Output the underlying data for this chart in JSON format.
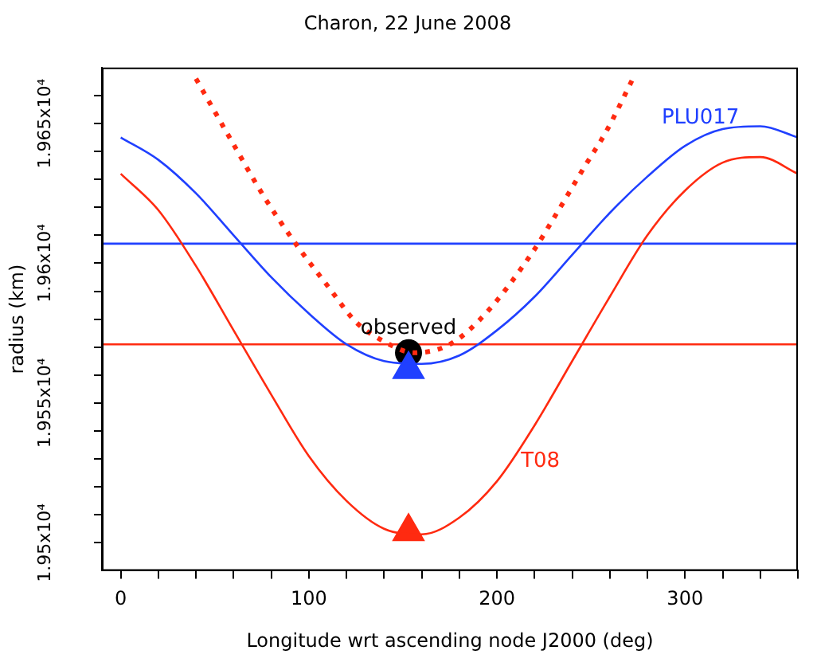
{
  "chart_data": {
    "type": "line",
    "title": "Charon, 22 June 2008",
    "xlabel": "Longitude wrt ascending node J2000 (deg)",
    "ylabel": "radius (km)",
    "xlim": [
      -10,
      360
    ],
    "ylim": [
      19490,
      19670
    ],
    "xticks": [
      0,
      {
        "value": 20,
        "label": null
      },
      {
        "value": 40,
        "label": null
      },
      {
        "value": 60,
        "label": null
      },
      {
        "value": 80,
        "label": null
      },
      100,
      {
        "value": 120,
        "label": null
      },
      {
        "value": 140,
        "label": null
      },
      {
        "value": 160,
        "label": null
      },
      {
        "value": 180,
        "label": null
      },
      200,
      {
        "value": 220,
        "label": null
      },
      {
        "value": 240,
        "label": null
      },
      {
        "value": 260,
        "label": null
      },
      {
        "value": 280,
        "label": null
      },
      300,
      {
        "value": 320,
        "label": null
      },
      {
        "value": 340,
        "label": null
      },
      {
        "value": 360,
        "label": null
      }
    ],
    "yticks": [
      {
        "value": 19500,
        "label": "1.95x10⁴"
      },
      {
        "value": 19510,
        "label": null
      },
      {
        "value": 19520,
        "label": null
      },
      {
        "value": 19530,
        "label": null
      },
      {
        "value": 19540,
        "label": null
      },
      {
        "value": 19550,
        "label": "1.955x10⁴"
      },
      {
        "value": 19560,
        "label": null
      },
      {
        "value": 19570,
        "label": null
      },
      {
        "value": 19580,
        "label": null
      },
      {
        "value": 19590,
        "label": null
      },
      {
        "value": 19600,
        "label": "1.96x10⁴"
      },
      {
        "value": 19610,
        "label": null
      },
      {
        "value": 19620,
        "label": null
      },
      {
        "value": 19630,
        "label": null
      },
      {
        "value": 19640,
        "label": null
      },
      {
        "value": 19650,
        "label": "1.965x10⁴"
      },
      {
        "value": 19660,
        "label": null
      }
    ],
    "grid": false,
    "legend": false,
    "series": [
      {
        "name": "PLU017",
        "color": "#2040ff",
        "x": [
          0,
          20,
          40,
          60,
          80,
          100,
          120,
          140,
          160,
          180,
          200,
          220,
          240,
          260,
          280,
          300,
          320,
          340,
          360
        ],
        "values": [
          19645,
          19637,
          19625,
          19610,
          19595,
          19582,
          19571,
          19565,
          19564,
          19567,
          19576,
          19588,
          19603,
          19618,
          19631,
          19642,
          19648,
          19649,
          19645
        ]
      },
      {
        "name": "T08",
        "color": "#ff2a10",
        "x": [
          0,
          20,
          40,
          60,
          80,
          100,
          120,
          140,
          160,
          180,
          200,
          220,
          240,
          260,
          280,
          300,
          320,
          340,
          360
        ],
        "values": [
          19632,
          19619,
          19599,
          19576,
          19553,
          19531,
          19515,
          19505,
          19503,
          19509,
          19522,
          19542,
          19565,
          19588,
          19610,
          19626,
          19636,
          19638,
          19632
        ]
      },
      {
        "color": "#ff2a10",
        "line_style": "dotted",
        "x": [
          40,
          57,
          76,
          93,
          111,
          125,
          140,
          156,
          175,
          194,
          219,
          231,
          247,
          258,
          273
        ],
        "values": [
          19666,
          19646,
          19624,
          19607,
          19591,
          19579,
          19572,
          19568,
          19571,
          19582,
          19604,
          19617,
          19635,
          19647,
          19667
        ]
      },
      {
        "type": "scatter",
        "marker": "triangle",
        "color": "#2040ff",
        "x": [
          153
        ],
        "values": [
          19562
        ]
      },
      {
        "type": "scatter",
        "marker": "triangle",
        "color": "#ff2a10",
        "x": [
          153
        ],
        "values": [
          19504
        ]
      },
      {
        "type": "scatter",
        "marker": "circle",
        "color": "#000000",
        "x": [
          153
        ],
        "values": [
          19568
        ]
      }
    ],
    "ref_lines": [
      {
        "axis": "y",
        "value": 19607,
        "color": "#2040ff"
      },
      {
        "axis": "y",
        "value": 19571,
        "color": "#ff2a10"
      }
    ],
    "annotations": [
      {
        "text": "observed",
        "x": 153,
        "y": 19568
      }
    ]
  }
}
